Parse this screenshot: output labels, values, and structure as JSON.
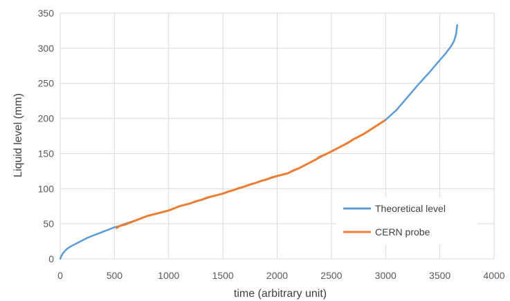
{
  "chart_data": {
    "type": "line",
    "title": "",
    "xlabel": "time (arbitrary unit)",
    "ylabel": "Liquid level (mm)",
    "xlim": [
      0,
      4000
    ],
    "ylim": [
      0,
      350
    ],
    "xticks": [
      0,
      500,
      1000,
      1500,
      2000,
      2500,
      3000,
      3500,
      4000
    ],
    "yticks": [
      0,
      50,
      100,
      150,
      200,
      250,
      300,
      350
    ],
    "grid": true,
    "legend_position": "bottom-right",
    "series": [
      {
        "name": "Theoretical level",
        "color": "#5B9BD5",
        "x": [
          0,
          10,
          30,
          60,
          100,
          150,
          200,
          250,
          300,
          350,
          400,
          450,
          500,
          550,
          600,
          700,
          800,
          900,
          1000,
          1100,
          1200,
          1300,
          1400,
          1500,
          1600,
          1700,
          1800,
          1900,
          2000,
          2100,
          2200,
          2300,
          2400,
          2500,
          2600,
          2700,
          2800,
          2900,
          3000,
          3050,
          3100,
          3200,
          3300,
          3400,
          3500,
          3550,
          3600,
          3630,
          3650,
          3660
        ],
        "y": [
          0,
          4,
          9,
          14,
          18,
          22,
          26,
          30,
          33,
          36,
          39,
          42,
          45,
          47,
          50,
          55,
          61,
          65,
          69,
          75,
          79,
          84,
          89,
          93,
          98,
          103,
          108,
          113,
          118,
          122,
          129,
          137,
          145,
          153,
          161,
          170,
          178,
          188,
          198,
          205,
          212,
          230,
          248,
          265,
          283,
          292,
          302,
          310,
          320,
          333
        ]
      },
      {
        "name": "CERN probe",
        "color": "#ED7D31",
        "x": [
          520,
          550,
          600,
          650,
          700,
          750,
          800,
          850,
          900,
          950,
          1000,
          1050,
          1100,
          1150,
          1200,
          1250,
          1300,
          1350,
          1400,
          1450,
          1500,
          1550,
          1600,
          1650,
          1700,
          1750,
          1800,
          1850,
          1900,
          1950,
          2000,
          2050,
          2100,
          2150,
          2200,
          2250,
          2300,
          2350,
          2400,
          2450,
          2500,
          2550,
          2600,
          2650,
          2700,
          2750,
          2800,
          2850,
          2900,
          2950,
          2990
        ],
        "y": [
          44,
          47,
          49,
          52,
          55,
          58,
          61,
          63,
          65,
          67,
          69,
          72,
          75,
          77,
          79,
          82,
          84,
          87,
          89,
          91,
          93,
          96,
          98,
          101,
          103,
          106,
          108,
          111,
          113,
          116,
          118,
          120,
          122,
          126,
          129,
          133,
          137,
          141,
          146,
          149,
          153,
          157,
          161,
          165,
          170,
          174,
          178,
          183,
          188,
          193,
          197
        ]
      }
    ]
  }
}
